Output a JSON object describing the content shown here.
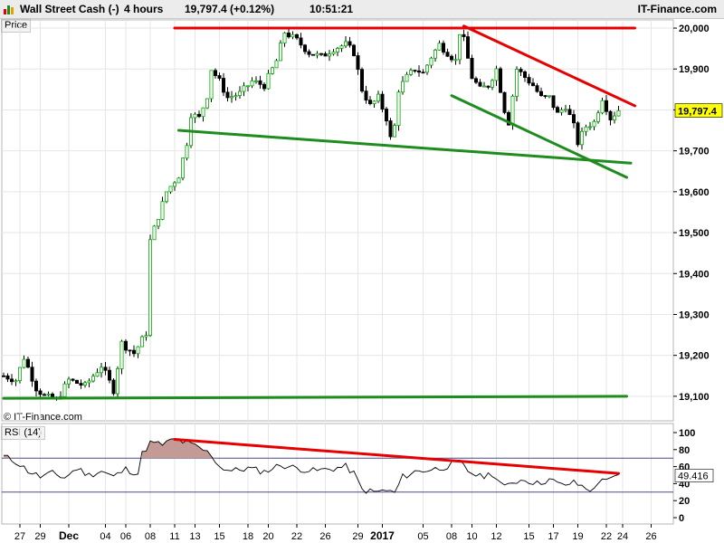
{
  "header": {
    "instrument": "Wall Street Cash (-)",
    "timeframe": "4 hours",
    "last_change": "19,797.4 (+0.12%)",
    "time": "10:51:21",
    "brand": "IT-Finance.com",
    "logo_icon": "bar-chart-logo-icon"
  },
  "price_panel_label": "Price",
  "watermark": "© IT-Finance.com",
  "rsi_panel_label": "RSI (14)",
  "chart_data": [
    {
      "type": "candlestick",
      "ylim": [
        19040,
        20020
      ],
      "yticks": [
        20000,
        19900,
        19800,
        19700,
        19600,
        19500,
        19400,
        19300,
        19200,
        19100
      ],
      "ytick_labels": [
        "20,000",
        "19,900",
        "19,800",
        "19,700",
        "19,600",
        "19,500",
        "19,400",
        "19,300",
        "19,200",
        "19,100"
      ],
      "last_value": 19797.4,
      "last_label": "19,797.4",
      "approx_path": [
        [
          0,
          19150
        ],
        [
          3,
          19140
        ],
        [
          5,
          19195
        ],
        [
          8,
          19120
        ],
        [
          10,
          19100
        ],
        [
          13,
          19090
        ],
        [
          16,
          19140
        ],
        [
          20,
          19125
        ],
        [
          24,
          19175
        ],
        [
          27,
          19115
        ],
        [
          29,
          19230
        ],
        [
          32,
          19205
        ],
        [
          35,
          19255
        ],
        [
          36,
          19480
        ],
        [
          38,
          19540
        ],
        [
          40,
          19600
        ],
        [
          43,
          19640
        ],
        [
          45,
          19720
        ],
        [
          46,
          19790
        ],
        [
          48,
          19780
        ],
        [
          50,
          19835
        ],
        [
          51,
          19900
        ],
        [
          53,
          19870
        ],
        [
          55,
          19830
        ],
        [
          58,
          19840
        ],
        [
          61,
          19870
        ],
        [
          64,
          19860
        ],
        [
          67,
          19920
        ],
        [
          69,
          19990
        ],
        [
          72,
          19970
        ],
        [
          75,
          19940
        ],
        [
          78,
          19930
        ],
        [
          81,
          19950
        ],
        [
          84,
          19960
        ],
        [
          86,
          19940
        ],
        [
          88,
          19850
        ],
        [
          90,
          19810
        ],
        [
          92,
          19830
        ],
        [
          94,
          19780
        ],
        [
          95,
          19730
        ],
        [
          96,
          19760
        ],
        [
          97,
          19850
        ],
        [
          99,
          19880
        ],
        [
          101,
          19900
        ],
        [
          103,
          19890
        ],
        [
          105,
          19930
        ],
        [
          107,
          19960
        ],
        [
          109,
          19940
        ],
        [
          111,
          19920
        ],
        [
          112,
          19990
        ],
        [
          113,
          19970
        ],
        [
          115,
          19880
        ],
        [
          117,
          19850
        ],
        [
          119,
          19860
        ],
        [
          121,
          19900
        ],
        [
          123,
          19800
        ],
        [
          124,
          19770
        ],
        [
          126,
          19900
        ],
        [
          128,
          19880
        ],
        [
          130,
          19860
        ],
        [
          132,
          19830
        ],
        [
          134,
          19830
        ],
        [
          136,
          19790
        ],
        [
          138,
          19810
        ],
        [
          140,
          19760
        ],
        [
          141,
          19720
        ],
        [
          143,
          19760
        ],
        [
          145,
          19770
        ],
        [
          147,
          19830
        ],
        [
          149,
          19780
        ],
        [
          151,
          19800
        ]
      ],
      "bar_count": 152,
      "trendlines": [
        {
          "color": "#e60000",
          "p1": [
            42,
            20000
          ],
          "p2": [
            155,
            20000
          ]
        },
        {
          "color": "#e60000",
          "p1": [
            113,
            20005
          ],
          "p2": [
            155,
            19810
          ]
        },
        {
          "color": "#1e8c1e",
          "p1": [
            43,
            19750
          ],
          "p2": [
            154,
            19670
          ]
        },
        {
          "color": "#1e8c1e",
          "p1": [
            110,
            19835
          ],
          "p2": [
            153,
            19635
          ]
        },
        {
          "color": "#1e8c1e",
          "p1": [
            0,
            19095
          ],
          "p2": [
            153,
            19100
          ]
        }
      ]
    },
    {
      "type": "line",
      "title": "RSI (14)",
      "ylim": [
        0,
        100
      ],
      "yticks": [
        100,
        80,
        60,
        40,
        20,
        0
      ],
      "levels": [
        70,
        30
      ],
      "last_value": 49.416,
      "last_label": "49.416",
      "approx_path": [
        [
          0,
          72
        ],
        [
          3,
          66
        ],
        [
          6,
          55
        ],
        [
          9,
          48
        ],
        [
          12,
          52
        ],
        [
          15,
          47
        ],
        [
          18,
          58
        ],
        [
          21,
          50
        ],
        [
          24,
          55
        ],
        [
          27,
          48
        ],
        [
          30,
          57
        ],
        [
          33,
          52
        ],
        [
          34,
          75
        ],
        [
          36,
          88
        ],
        [
          39,
          86
        ],
        [
          42,
          92
        ],
        [
          45,
          88
        ],
        [
          48,
          82
        ],
        [
          51,
          74
        ],
        [
          53,
          60
        ],
        [
          56,
          55
        ],
        [
          60,
          58
        ],
        [
          64,
          54
        ],
        [
          68,
          62
        ],
        [
          72,
          58
        ],
        [
          76,
          55
        ],
        [
          80,
          57
        ],
        [
          84,
          60
        ],
        [
          86,
          52
        ],
        [
          88,
          33
        ],
        [
          91,
          30
        ],
        [
          94,
          32
        ],
        [
          96,
          29
        ],
        [
          98,
          48
        ],
        [
          101,
          54
        ],
        [
          104,
          56
        ],
        [
          107,
          58
        ],
        [
          110,
          62
        ],
        [
          112,
          65
        ],
        [
          114,
          55
        ],
        [
          117,
          48
        ],
        [
          120,
          52
        ],
        [
          123,
          35
        ],
        [
          125,
          42
        ],
        [
          128,
          45
        ],
        [
          131,
          40
        ],
        [
          134,
          45
        ],
        [
          137,
          38
        ],
        [
          140,
          41
        ],
        [
          143,
          35
        ],
        [
          145,
          32
        ],
        [
          147,
          48
        ],
        [
          149,
          44
        ],
        [
          151,
          49
        ]
      ],
      "trendline": {
        "color": "#e60000",
        "p1": [
          42,
          92
        ],
        "p2": [
          151,
          52
        ]
      }
    }
  ],
  "x_axis": {
    "labels": [
      {
        "idx": 4,
        "text": "27"
      },
      {
        "idx": 9,
        "text": "29"
      },
      {
        "idx": 16,
        "text": "Dec",
        "bold": true
      },
      {
        "idx": 25,
        "text": "04"
      },
      {
        "idx": 30,
        "text": "06"
      },
      {
        "idx": 36,
        "text": "08"
      },
      {
        "idx": 42,
        "text": "11"
      },
      {
        "idx": 47,
        "text": "13"
      },
      {
        "idx": 53,
        "text": "15"
      },
      {
        "idx": 60,
        "text": "18"
      },
      {
        "idx": 65,
        "text": "20"
      },
      {
        "idx": 72,
        "text": "22"
      },
      {
        "idx": 79,
        "text": "26"
      },
      {
        "idx": 87,
        "text": "29"
      },
      {
        "idx": 93,
        "text": "2017",
        "bold": true
      },
      {
        "idx": 103,
        "text": "05"
      },
      {
        "idx": 110,
        "text": "08"
      },
      {
        "idx": 115,
        "text": "10"
      },
      {
        "idx": 121,
        "text": "12"
      },
      {
        "idx": 129,
        "text": "15"
      },
      {
        "idx": 135,
        "text": "17"
      },
      {
        "idx": 141,
        "text": "19"
      },
      {
        "idx": 148,
        "text": "22"
      },
      {
        "idx": 152,
        "text": "24"
      },
      {
        "idx": 159,
        "text": "26"
      }
    ]
  },
  "colors": {
    "up": "#00aa00",
    "down": "#000000",
    "red_line": "#e60000",
    "green_line": "#1e8c1e",
    "rsi_fill": "#c49a96",
    "level_line": "#4c4c8c"
  }
}
